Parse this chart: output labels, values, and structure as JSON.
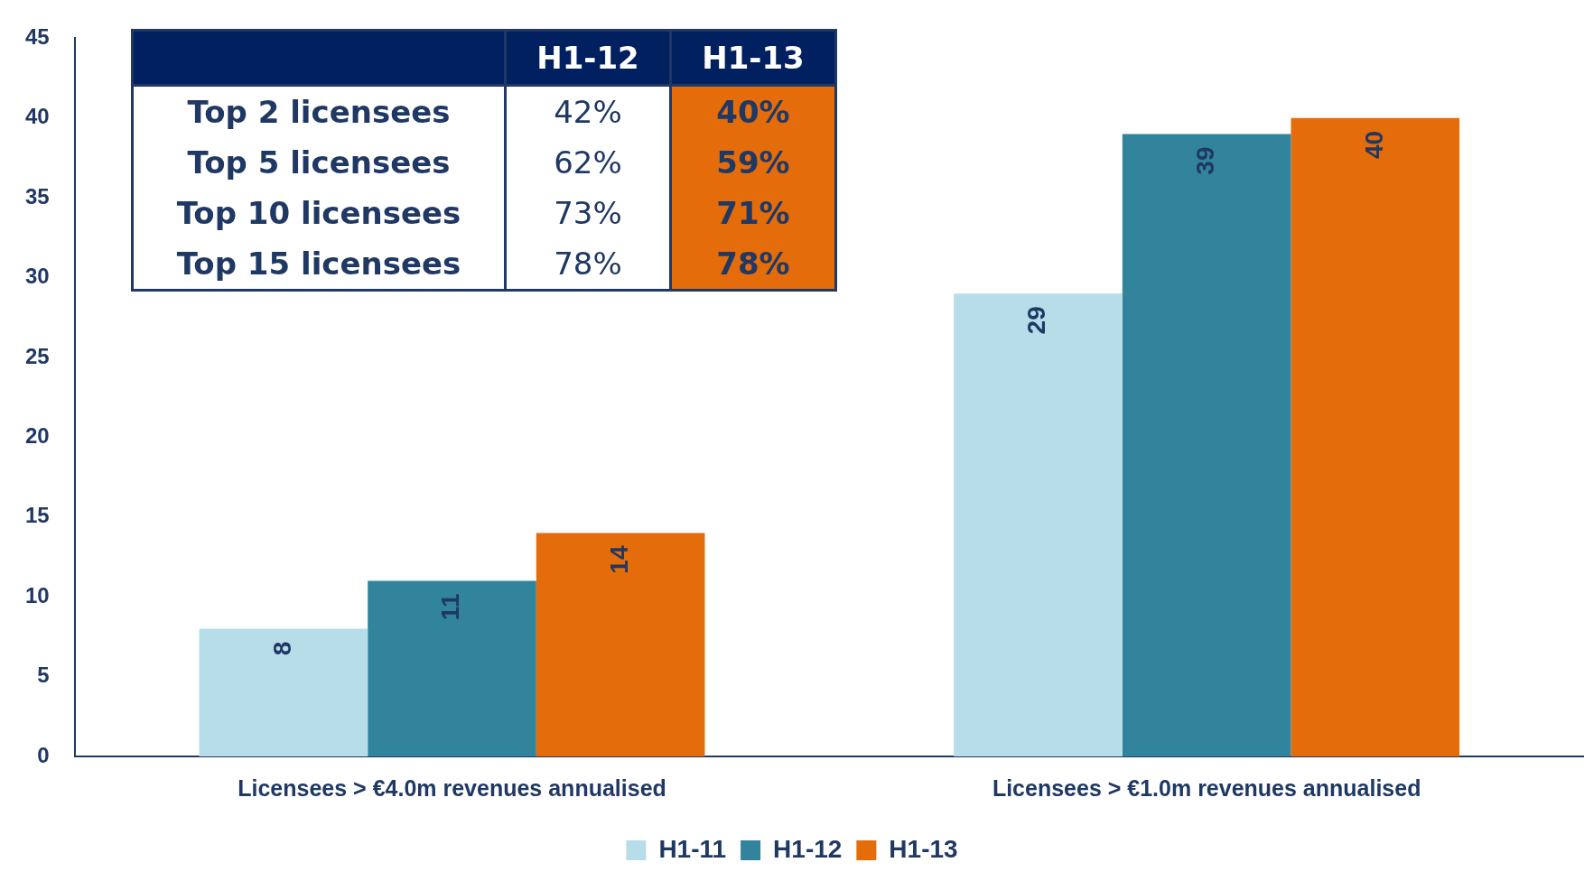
{
  "chart_data": [
    {
      "type": "bar",
      "categories": [
        "Licensees > €4.0m revenues annualised",
        "Licensees > €1.0m revenues annualised"
      ],
      "series": [
        {
          "name": "H1-11",
          "color": "#b7dde8",
          "values": [
            8,
            29
          ]
        },
        {
          "name": "H1-12",
          "color": "#31849b",
          "values": [
            11,
            39
          ]
        },
        {
          "name": "H1-13",
          "color": "#e46c0a",
          "values": [
            14,
            40
          ]
        }
      ],
      "ylim": [
        0,
        45
      ],
      "yticks": [
        0,
        5,
        10,
        15,
        20,
        25,
        30,
        35,
        40,
        45
      ],
      "grid": false,
      "legend": "bottom",
      "data_labels": true
    },
    {
      "type": "other",
      "categories": [
        "H1-12",
        "H1-13"
      ],
      "y_categories": [
        "Top 2 licensees",
        "Top 5 licensees",
        "Top 10 licensees",
        "Top 15 licensees"
      ],
      "cell_labels": [
        [
          "42%",
          "40%"
        ],
        [
          "62%",
          "59%"
        ],
        [
          "73%",
          "71%"
        ],
        [
          "78%",
          "78%"
        ]
      ]
    }
  ]
}
